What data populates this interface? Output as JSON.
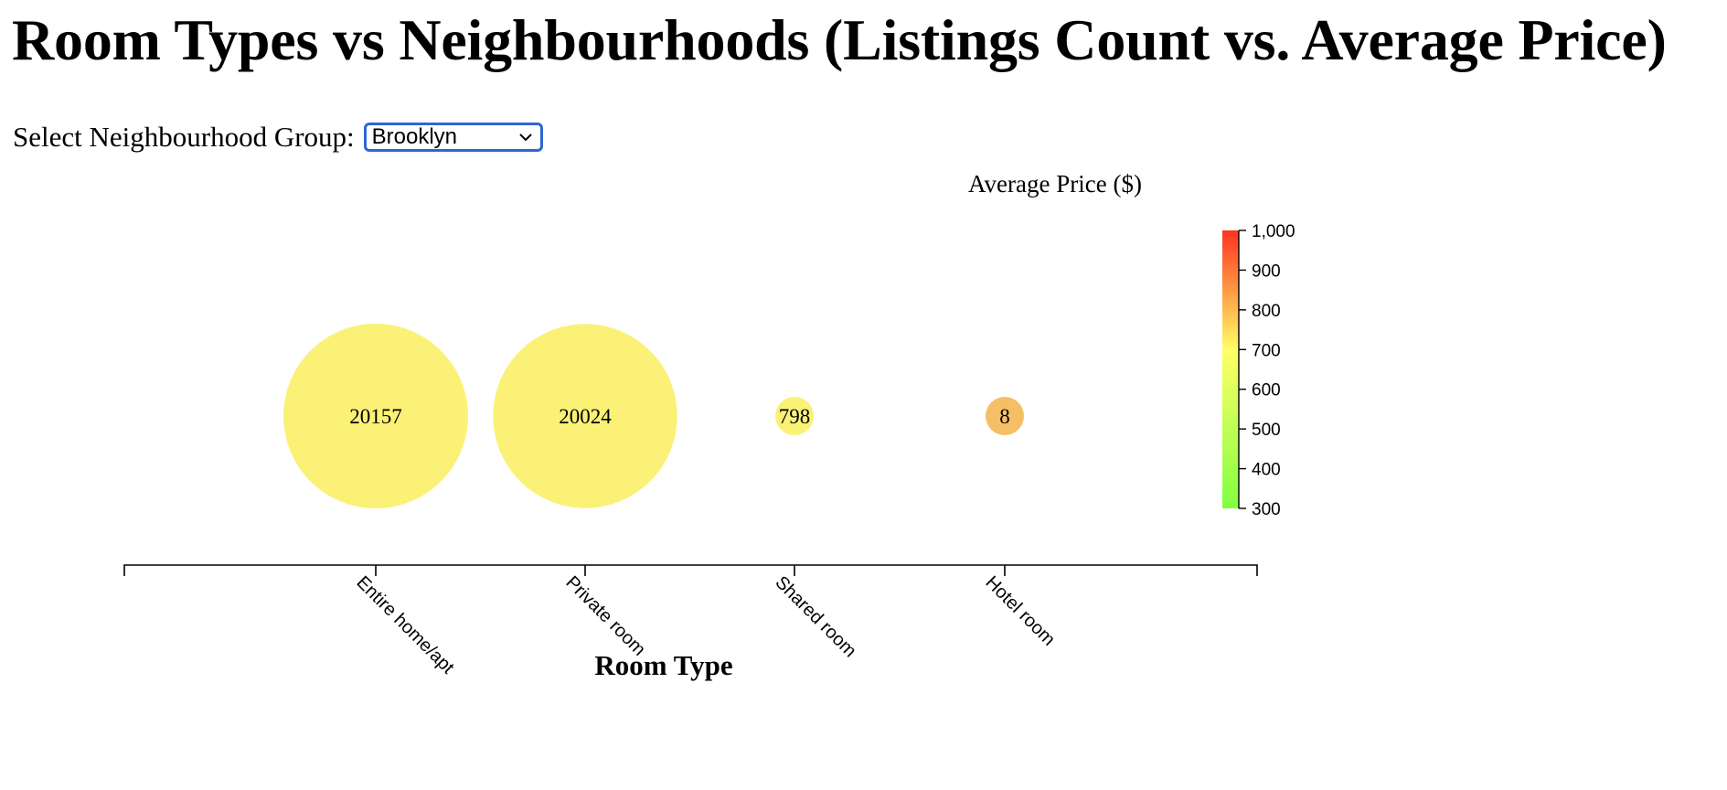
{
  "title": "Room Types vs Neighbourhoods (Listings Count vs. Average Price)",
  "control": {
    "label": "Select Neighbourhood Group:",
    "selected": "Brooklyn"
  },
  "chart_data": {
    "type": "bubble",
    "xlabel": "Room Type",
    "color_legend_title": "Average Price ($)",
    "color_domain": [
      300,
      1000
    ],
    "color_ticks": [
      "1,000",
      "900",
      "800",
      "700",
      "600",
      "500",
      "400",
      "300"
    ],
    "color_tick_values": [
      1000,
      900,
      800,
      700,
      600,
      500,
      400,
      300
    ],
    "color_scale": [
      "#80ff40",
      "#ffff66",
      "#ff3322"
    ],
    "categories": [
      "Entire home/apt",
      "Private room",
      "Shared room",
      "Hotel room"
    ],
    "counts": [
      20157,
      20024,
      798,
      8
    ],
    "count_labels": [
      "20157",
      "20024",
      "798",
      "8"
    ],
    "avg_price_colors": [
      "#fbf176",
      "#fbf176",
      "#fbf176",
      "#f5bf66"
    ]
  }
}
